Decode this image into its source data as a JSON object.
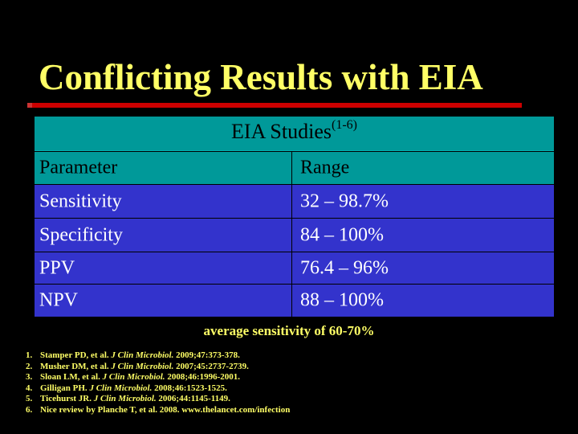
{
  "slide": {
    "title": "Conflicting Results with EIA",
    "table": {
      "caption": "EIA Studies",
      "caption_superscript": "(1-6)",
      "headers": [
        "Parameter",
        "Range"
      ],
      "rows": [
        [
          "Sensitivity",
          "32 – 98.7%"
        ],
        [
          "Specificity",
          "84 – 100%"
        ],
        [
          "PPV",
          "76.4 – 96%"
        ],
        [
          "NPV",
          "88 – 100%"
        ]
      ]
    },
    "note": "average sensitivity of 60-70%",
    "references": [
      {
        "num": "1.",
        "pre": "Stamper PD, et al. ",
        "journal": "J Clin Microbiol.",
        "post": " 2009;47:373-378."
      },
      {
        "num": "2.",
        "pre": "Musher DM, et al. ",
        "journal": "J Clin Microbiol.",
        "post": " 2007;45:2737-2739."
      },
      {
        "num": "3.",
        "pre": "Sloan LM, et al. ",
        "journal": "J Clin Microbiol.",
        "post": " 2008;46:1996-2001."
      },
      {
        "num": "4.",
        "pre": "Gilligan PH. ",
        "journal": "J Clin Microbiol.",
        "post": " 2008;46:1523-1525."
      },
      {
        "num": "5.",
        "pre": "Ticehurst JR. ",
        "journal": "J Clin Microbiol.",
        "post": " 2006;44:1145-1149."
      },
      {
        "num": "6.",
        "pre": "Nice review by Planche T, et al. 2008. www.thelancet.com/infection",
        "journal": "",
        "post": ""
      }
    ],
    "colors": {
      "background": "#000000",
      "title": "#ffff66",
      "rule": "#cc0000",
      "table_header": "#009999",
      "table_body": "#3333cc"
    }
  }
}
